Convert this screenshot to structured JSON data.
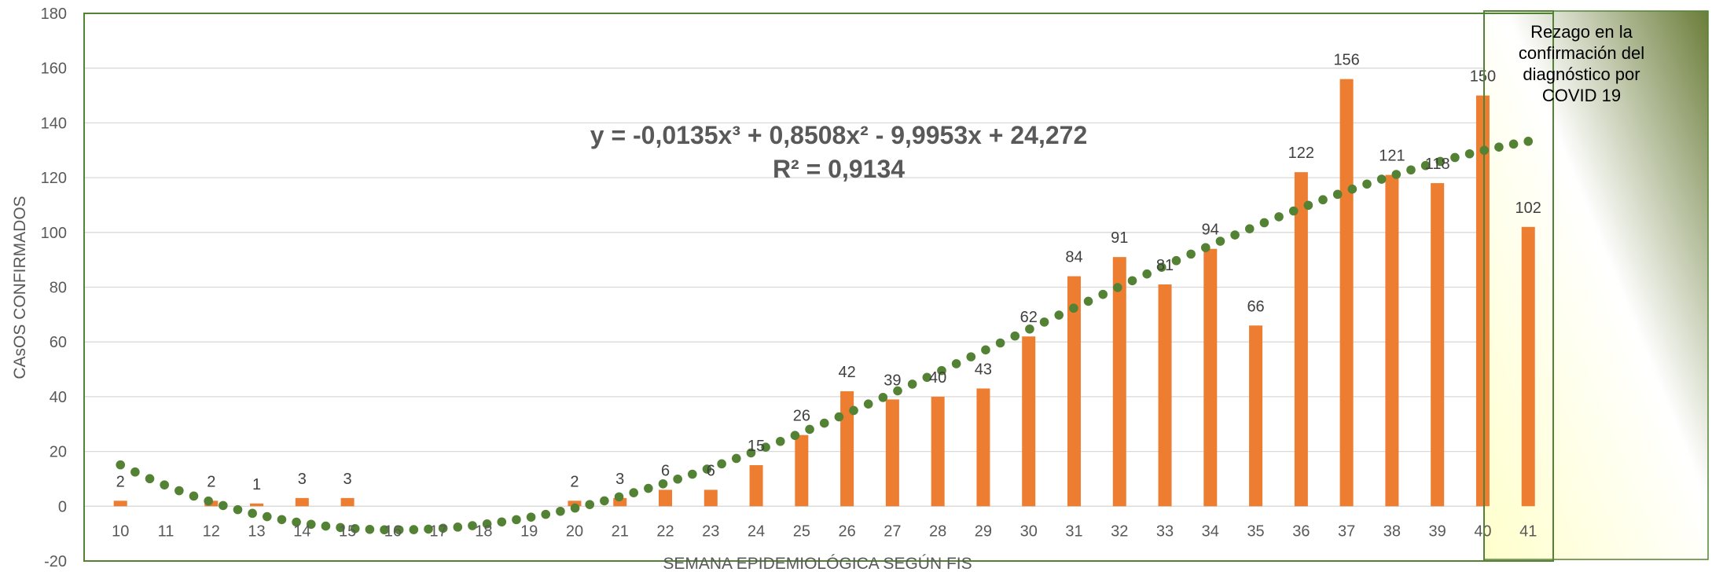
{
  "chart_data": {
    "type": "bar",
    "xlabel": "SEMANA EPIDEMIOLÓGICA SEGÚN FIS",
    "ylabel": "CAsOS CONFIRMADOS",
    "ylim": [
      -20,
      180
    ],
    "yticks": [
      -20,
      0,
      20,
      40,
      60,
      80,
      100,
      120,
      140,
      160,
      180
    ],
    "grid": true,
    "categories": [
      "10",
      "11",
      "12",
      "13",
      "14",
      "15",
      "16",
      "17",
      "18",
      "19",
      "20",
      "21",
      "22",
      "23",
      "24",
      "25",
      "26",
      "27",
      "28",
      "29",
      "30",
      "31",
      "32",
      "33",
      "34",
      "35",
      "36",
      "37",
      "38",
      "39",
      "40",
      "41"
    ],
    "series": [
      {
        "values": [
          2,
          0,
          2,
          1,
          3,
          3,
          0,
          0,
          0,
          0,
          2,
          3,
          6,
          6,
          15,
          26,
          42,
          39,
          40,
          43,
          62,
          84,
          91,
          81,
          94,
          66,
          122,
          156,
          121,
          118,
          150,
          102
        ],
        "data_labels": [
          "2",
          "",
          "2",
          "1",
          "3",
          "3",
          "",
          "",
          "",
          "",
          "2",
          "3",
          "6",
          "6",
          "15",
          "26",
          "42",
          "39",
          "40",
          "43",
          "62",
          "84",
          "91",
          "81",
          "94",
          "66",
          "122",
          "156",
          "121",
          "118",
          "150",
          "102"
        ],
        "color": "#ED7D31"
      }
    ],
    "trendline": {
      "type": "polynomial",
      "order": 3,
      "color": "#548235",
      "style": "dotted",
      "coefficients": [
        -0.0135,
        0.8508,
        -9.9953,
        24.272
      ],
      "equation": "y = -0,0135x³ + 0,8508x² - 9,9953x + 24,272",
      "r_squared": "R² = 0,9134"
    },
    "annotation": {
      "lines": [
        "Rezago en la",
        "confirmación del",
        "diagnóstico por",
        "COVID 19"
      ],
      "border_color": "#548235"
    },
    "plot_border_color": "#548235"
  }
}
